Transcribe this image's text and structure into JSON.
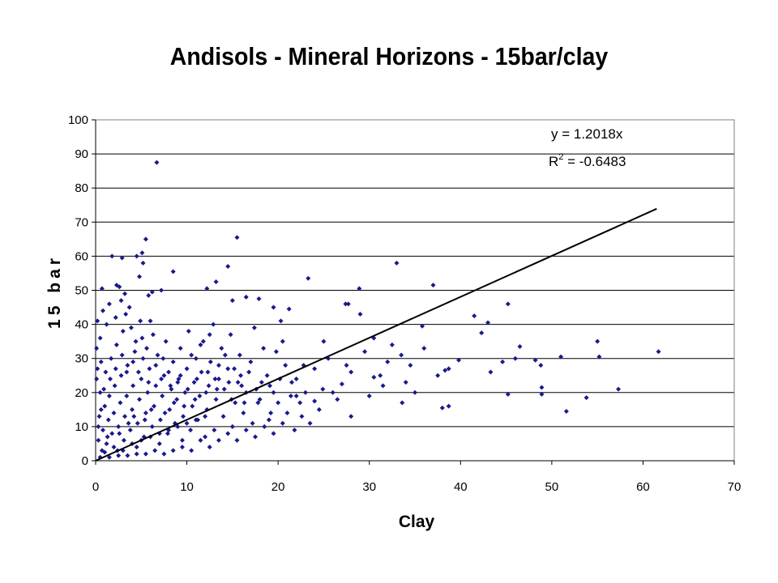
{
  "chart_data": {
    "type": "scatter",
    "title": "Andisols - Mineral Horizons - 15bar/clay",
    "xlabel": "Clay",
    "ylabel": "15 bar",
    "xlim": [
      0,
      70
    ],
    "ylim": [
      0,
      100
    ],
    "x_ticks": [
      "0",
      "10",
      "20",
      "30",
      "40",
      "50",
      "60",
      "70"
    ],
    "y_ticks": [
      "0",
      "10",
      "20",
      "30",
      "40",
      "50",
      "60",
      "70",
      "80",
      "90",
      "100"
    ],
    "grid": "horizontal",
    "marker_color": "#1a1a8c",
    "trendline": {
      "slope": 1.2018,
      "x_range": [
        0,
        61.5
      ],
      "equation": "y = 1.2018x",
      "r_squared_prefix": "R",
      "r_squared_suffix": " = -0.6483",
      "color": "#000000"
    },
    "series": [
      {
        "values": [
          [
            6.7,
            87.5
          ],
          [
            5.5,
            65
          ],
          [
            15.5,
            65.5
          ],
          [
            1.8,
            60
          ],
          [
            2.9,
            59.5
          ],
          [
            4.5,
            60
          ],
          [
            5.1,
            61
          ],
          [
            5.2,
            58
          ],
          [
            14.5,
            57
          ],
          [
            33,
            58
          ],
          [
            8.5,
            55.5
          ],
          [
            4.8,
            54
          ],
          [
            0.7,
            50.5
          ],
          [
            2.3,
            51.5
          ],
          [
            2.6,
            51
          ],
          [
            3.2,
            49
          ],
          [
            5.8,
            48.5
          ],
          [
            6.2,
            49.5
          ],
          [
            7.2,
            50
          ],
          [
            12.2,
            50.5
          ],
          [
            13.2,
            52.5
          ],
          [
            16.5,
            48
          ],
          [
            17.9,
            47.5
          ],
          [
            23.3,
            53.5
          ],
          [
            28.9,
            50.5
          ],
          [
            37,
            51.5
          ],
          [
            15,
            47
          ],
          [
            19.5,
            45
          ],
          [
            21.2,
            44.5
          ],
          [
            27.4,
            46
          ],
          [
            27.7,
            46
          ],
          [
            29,
            43
          ],
          [
            45.2,
            46
          ],
          [
            41.5,
            42.5
          ],
          [
            43,
            40.5
          ],
          [
            35.8,
            39.5
          ],
          [
            42.3,
            37.5
          ],
          [
            39.8,
            29.5
          ],
          [
            38.7,
            27
          ],
          [
            38.3,
            26.5
          ],
          [
            43.3,
            26
          ],
          [
            44.6,
            29
          ],
          [
            45.2,
            19.5
          ],
          [
            46,
            30
          ],
          [
            46.5,
            33.5
          ],
          [
            48.2,
            29.5
          ],
          [
            48.8,
            28
          ],
          [
            48.9,
            21.5
          ],
          [
            48.9,
            19.5
          ],
          [
            51,
            30.5
          ],
          [
            51.6,
            14.5
          ],
          [
            53.8,
            18.5
          ],
          [
            55,
            35
          ],
          [
            55.2,
            30.5
          ],
          [
            57.3,
            21
          ],
          [
            61.7,
            32
          ],
          [
            38.7,
            16
          ],
          [
            38,
            15.5
          ],
          [
            35,
            20
          ],
          [
            33.6,
            17
          ],
          [
            32,
            29
          ],
          [
            31.2,
            25
          ],
          [
            30.5,
            24.5
          ],
          [
            28,
            26
          ],
          [
            27,
            22.5
          ],
          [
            26.5,
            18
          ],
          [
            24.9,
            21
          ],
          [
            24,
            17.5
          ],
          [
            25.5,
            30
          ],
          [
            25,
            35
          ],
          [
            22.8,
            28
          ],
          [
            22.6,
            13
          ],
          [
            22,
            19
          ],
          [
            21.5,
            23
          ],
          [
            20.8,
            28
          ],
          [
            20.5,
            35
          ],
          [
            20.3,
            41
          ],
          [
            19.8,
            32
          ],
          [
            19.5,
            20
          ],
          [
            19.2,
            14
          ],
          [
            19,
            12
          ],
          [
            18.4,
            33
          ],
          [
            18.2,
            23
          ],
          [
            17.8,
            17
          ],
          [
            17.4,
            39
          ],
          [
            17.2,
            11
          ],
          [
            16.8,
            26
          ],
          [
            16.5,
            20
          ],
          [
            16.2,
            14
          ],
          [
            15.8,
            31
          ],
          [
            15.6,
            23
          ],
          [
            15.3,
            17
          ],
          [
            15,
            10
          ],
          [
            14.8,
            37
          ],
          [
            14.5,
            27
          ],
          [
            14.1,
            21
          ],
          [
            14,
            13
          ],
          [
            13.8,
            33
          ],
          [
            13.5,
            24
          ],
          [
            13.2,
            18
          ],
          [
            13,
            9
          ],
          [
            12.9,
            40
          ],
          [
            12.6,
            29
          ],
          [
            12.4,
            22
          ],
          [
            12.2,
            15
          ],
          [
            12,
            7
          ],
          [
            11.8,
            35
          ],
          [
            11.6,
            26
          ],
          [
            11.4,
            19
          ],
          [
            11.2,
            12
          ],
          [
            11,
            30
          ],
          [
            10.8,
            23
          ],
          [
            10.6,
            16
          ],
          [
            10.4,
            9
          ],
          [
            10.2,
            38
          ],
          [
            10,
            27
          ],
          [
            9.8,
            20
          ],
          [
            9.6,
            13
          ],
          [
            9.5,
            6
          ],
          [
            9.3,
            33
          ],
          [
            9.1,
            24
          ],
          [
            8.9,
            18
          ],
          [
            8.7,
            11
          ],
          [
            8.5,
            29
          ],
          [
            8.3,
            21
          ],
          [
            8.1,
            15
          ],
          [
            7.9,
            8
          ],
          [
            7.7,
            35
          ],
          [
            7.5,
            25
          ],
          [
            7.3,
            19
          ],
          [
            7.1,
            12
          ],
          [
            7,
            5
          ],
          [
            6.8,
            31
          ],
          [
            6.6,
            22
          ],
          [
            6.4,
            16
          ],
          [
            6.2,
            10
          ],
          [
            6,
            41
          ],
          [
            5.9,
            27
          ],
          [
            5.7,
            20
          ],
          [
            5.5,
            14
          ],
          [
            5.3,
            7
          ],
          [
            5.1,
            36
          ],
          [
            5,
            24
          ],
          [
            4.8,
            18
          ],
          [
            4.6,
            11
          ],
          [
            4.5,
            4
          ],
          [
            4.3,
            32
          ],
          [
            4.1,
            22
          ],
          [
            4,
            15
          ],
          [
            3.8,
            9
          ],
          [
            3.7,
            45
          ],
          [
            3.5,
            28
          ],
          [
            3.4,
            19
          ],
          [
            3.2,
            13
          ],
          [
            3.1,
            6
          ],
          [
            3,
            38
          ],
          [
            2.8,
            25
          ],
          [
            2.7,
            17
          ],
          [
            2.5,
            10
          ],
          [
            2.4,
            3
          ],
          [
            2.3,
            34
          ],
          [
            2.1,
            22
          ],
          [
            2,
            14
          ],
          [
            1.8,
            8
          ],
          [
            1.7,
            30
          ],
          [
            1.5,
            19
          ],
          [
            1.4,
            12
          ],
          [
            1.2,
            5
          ],
          [
            1.1,
            26
          ],
          [
            1,
            16
          ],
          [
            0.8,
            9
          ],
          [
            0.7,
            3
          ],
          [
            0.6,
            29
          ],
          [
            0.5,
            20
          ],
          [
            0.4,
            13
          ],
          [
            0.3,
            6
          ],
          [
            0.2,
            41
          ],
          [
            0.2,
            27
          ],
          [
            0.1,
            33
          ],
          [
            0.1,
            24
          ],
          [
            0.5,
            36
          ],
          [
            0.8,
            44
          ],
          [
            1.2,
            40
          ],
          [
            1.5,
            46
          ],
          [
            2.2,
            42
          ],
          [
            2.8,
            47
          ],
          [
            3.3,
            43
          ],
          [
            3.9,
            39
          ],
          [
            4.4,
            35
          ],
          [
            4.9,
            41
          ],
          [
            5.6,
            33
          ],
          [
            6.3,
            37
          ],
          [
            7.4,
            30
          ],
          [
            8,
            26
          ],
          [
            9,
            23
          ],
          [
            10.5,
            31
          ],
          [
            11.5,
            34
          ],
          [
            12.5,
            37
          ],
          [
            13.5,
            28
          ],
          [
            14.2,
            31
          ],
          [
            15.2,
            27
          ],
          [
            16,
            22
          ],
          [
            17,
            29
          ],
          [
            18,
            18
          ],
          [
            18.8,
            25
          ],
          [
            20,
            17
          ],
          [
            21,
            14
          ],
          [
            22,
            24
          ],
          [
            23,
            20
          ],
          [
            24,
            27
          ],
          [
            26,
            20
          ],
          [
            27.5,
            28
          ],
          [
            29.5,
            32
          ],
          [
            30.5,
            36
          ],
          [
            31.5,
            22
          ],
          [
            32.5,
            34
          ],
          [
            33.5,
            31
          ],
          [
            34.5,
            28
          ],
          [
            36,
            33
          ],
          [
            37.5,
            25
          ],
          [
            34,
            23
          ],
          [
            30,
            19
          ],
          [
            28,
            13
          ],
          [
            24.5,
            15
          ],
          [
            23.5,
            11
          ],
          [
            21.8,
            9
          ],
          [
            20.5,
            11
          ],
          [
            19.5,
            8
          ],
          [
            18.5,
            10
          ],
          [
            17.5,
            7
          ],
          [
            16.5,
            9
          ],
          [
            15.5,
            6
          ],
          [
            14.5,
            8
          ],
          [
            13.5,
            6
          ],
          [
            12.5,
            4
          ],
          [
            11.5,
            6
          ],
          [
            10.5,
            3
          ],
          [
            9.5,
            4
          ],
          [
            8.5,
            3
          ],
          [
            7.5,
            2
          ],
          [
            6.5,
            3
          ],
          [
            5.5,
            2
          ],
          [
            4.5,
            2
          ],
          [
            3.5,
            1.5
          ],
          [
            2.5,
            1.5
          ],
          [
            1.5,
            1
          ],
          [
            0.5,
            1
          ],
          [
            1,
            2.5
          ],
          [
            2,
            4
          ],
          [
            3,
            3
          ],
          [
            4,
            5
          ],
          [
            5,
            6
          ],
          [
            6,
            7
          ],
          [
            7,
            8
          ],
          [
            8,
            9
          ],
          [
            9,
            10
          ],
          [
            10,
            11
          ],
          [
            11,
            12
          ],
          [
            12,
            13
          ],
          [
            1.3,
            7
          ],
          [
            2.6,
            8
          ],
          [
            3.6,
            11
          ],
          [
            4.2,
            13
          ],
          [
            5.4,
            12
          ],
          [
            6.1,
            15
          ],
          [
            7.6,
            14
          ],
          [
            8.6,
            17
          ],
          [
            9.7,
            16
          ],
          [
            10.9,
            18
          ],
          [
            12.1,
            20
          ],
          [
            13.3,
            21
          ],
          [
            14.6,
            23
          ],
          [
            15.9,
            25
          ],
          [
            0.3,
            10
          ],
          [
            0.6,
            15
          ],
          [
            0.9,
            21
          ],
          [
            1.6,
            24
          ],
          [
            2.2,
            27
          ],
          [
            2.9,
            31
          ],
          [
            3.4,
            26
          ],
          [
            4.1,
            29
          ],
          [
            4.7,
            26
          ],
          [
            5.2,
            30
          ],
          [
            5.8,
            23
          ],
          [
            6.6,
            28
          ],
          [
            7.2,
            24
          ],
          [
            8.2,
            22
          ],
          [
            9.3,
            25
          ],
          [
            10.1,
            21
          ],
          [
            11.1,
            24
          ],
          [
            12.3,
            26
          ],
          [
            13.1,
            24
          ],
          [
            14.9,
            18
          ],
          [
            16.3,
            17
          ],
          [
            17.6,
            21
          ],
          [
            19.1,
            22
          ],
          [
            20.2,
            24
          ],
          [
            21.4,
            19
          ],
          [
            22.4,
            17
          ]
        ]
      }
    ]
  }
}
